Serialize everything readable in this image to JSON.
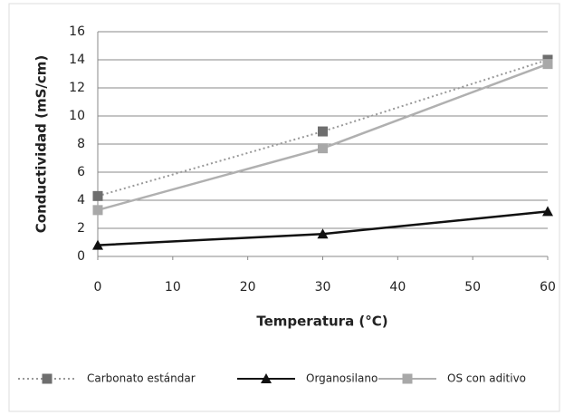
{
  "chart_data": {
    "type": "line",
    "xlabel": "Temperatura (°C)",
    "ylabel": "Conductividad (mS/cm)",
    "x": [
      0,
      30,
      60
    ],
    "series": [
      {
        "name": "Carbonato estándar",
        "color": "#999999",
        "marker_color": "#6e6e6e",
        "marker": "square",
        "dash": true,
        "values": [
          4.3,
          8.9,
          14.0
        ]
      },
      {
        "name": "Organosilano",
        "color": "#111111",
        "marker_color": "#111111",
        "marker": "triangle",
        "dash": false,
        "values": [
          0.8,
          1.6,
          3.2
        ]
      },
      {
        "name": "OS con aditivo",
        "color": "#b0b0b0",
        "marker_color": "#a8a8a8",
        "marker": "square",
        "dash": false,
        "values": [
          3.3,
          7.7,
          13.7
        ]
      }
    ],
    "xlim": [
      0,
      60
    ],
    "xticks": [
      0,
      10,
      20,
      30,
      40,
      50,
      60
    ],
    "ylim": [
      0,
      16
    ],
    "yticks": [
      0,
      2,
      4,
      6,
      8,
      10,
      12,
      14,
      16
    ],
    "grid": true,
    "legend": "bottom"
  }
}
